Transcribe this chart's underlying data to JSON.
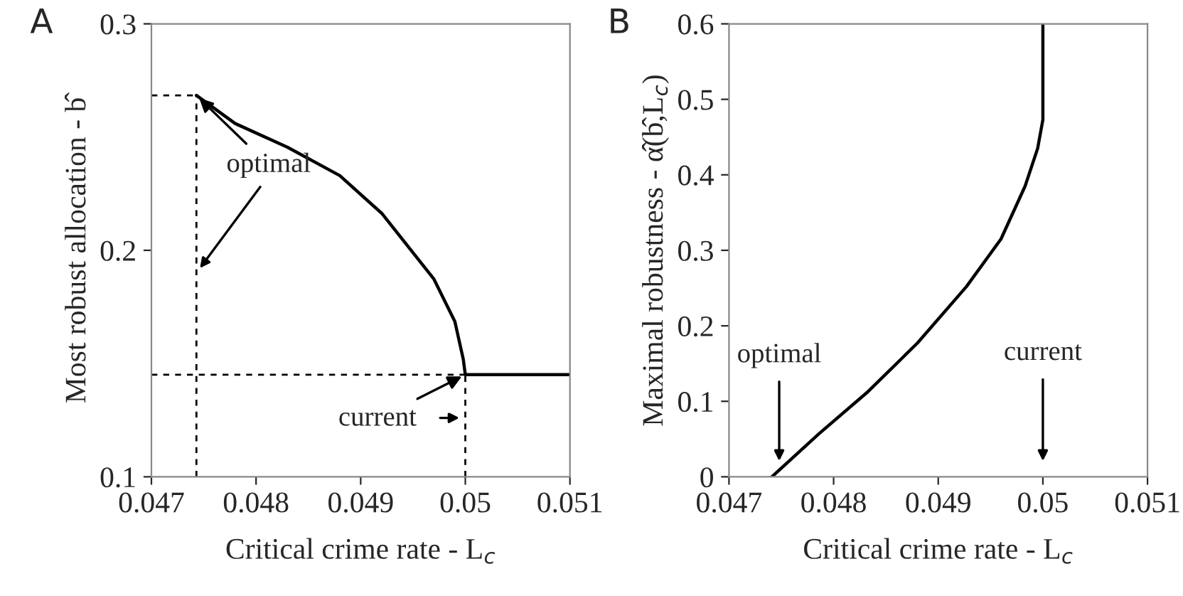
{
  "chart_data": [
    {
      "type": "line",
      "title": "A",
      "xlabel": "Critical crime rate - L$_{c}$",
      "ylabel": "Most robust allocation - b̂",
      "xlim": [
        0.047,
        0.051
      ],
      "xticks": [
        0.047,
        0.048,
        0.049,
        0.05,
        0.051
      ],
      "ylim": [
        0.1,
        0.3
      ],
      "yticks": [
        0.1,
        0.2,
        0.3
      ],
      "grid": false,
      "legend": false,
      "series": [
        {
          "color": "#000000",
          "line_style": "solid",
          "x": [
            0.04743,
            0.0478,
            0.0483,
            0.0488,
            0.0492,
            0.0497,
            0.0499,
            0.04998,
            0.05,
            0.051
          ],
          "values": [
            0.2684,
            0.256,
            0.2455,
            0.233,
            0.2164,
            0.1873,
            0.1686,
            0.152,
            0.1451,
            0.1451
          ]
        },
        {
          "color": "#000000",
          "line_style": "dashed",
          "x": [
            0.047,
            0.04743
          ],
          "values": [
            0.2684,
            0.2684
          ]
        },
        {
          "color": "#000000",
          "line_style": "dashed",
          "x": [
            0.04743,
            0.04743
          ],
          "values": [
            0.1,
            0.2684
          ]
        },
        {
          "color": "#000000",
          "line_style": "dashed",
          "x": [
            0.047,
            0.05
          ],
          "values": [
            0.1451,
            0.1451
          ]
        },
        {
          "color": "#000000",
          "line_style": "dashed",
          "x": [
            0.05,
            0.05
          ],
          "values": [
            0.1,
            0.1451
          ]
        }
      ],
      "annotations": [
        {
          "text": "optimal",
          "x": 0.04743,
          "y": 0.2684
        },
        {
          "text": "current",
          "x": 0.05,
          "y": 0.1451
        }
      ]
    },
    {
      "type": "line",
      "title": "B",
      "xlabel": "Critical crime rate - L$_{c}$",
      "ylabel": "Maximal robustness - α̂(b̂,L$_{c}$)",
      "xlim": [
        0.047,
        0.051
      ],
      "xticks": [
        0.047,
        0.048,
        0.049,
        0.05,
        0.051
      ],
      "ylim": [
        0,
        0.6
      ],
      "yticks": [
        0,
        0.1,
        0.2,
        0.3,
        0.4,
        0.5,
        0.6
      ],
      "grid": false,
      "legend": false,
      "series": [
        {
          "color": "#000000",
          "line_style": "solid",
          "x": [
            0.04741,
            0.04786,
            0.04833,
            0.0488,
            0.04927,
            0.0496,
            0.04983,
            0.04995,
            0.05,
            0.05
          ],
          "values": [
            0,
            0.057,
            0.113,
            0.177,
            0.252,
            0.315,
            0.385,
            0.435,
            0.473,
            0.6
          ]
        }
      ],
      "annotations": [
        "optimal",
        "current"
      ]
    }
  ]
}
